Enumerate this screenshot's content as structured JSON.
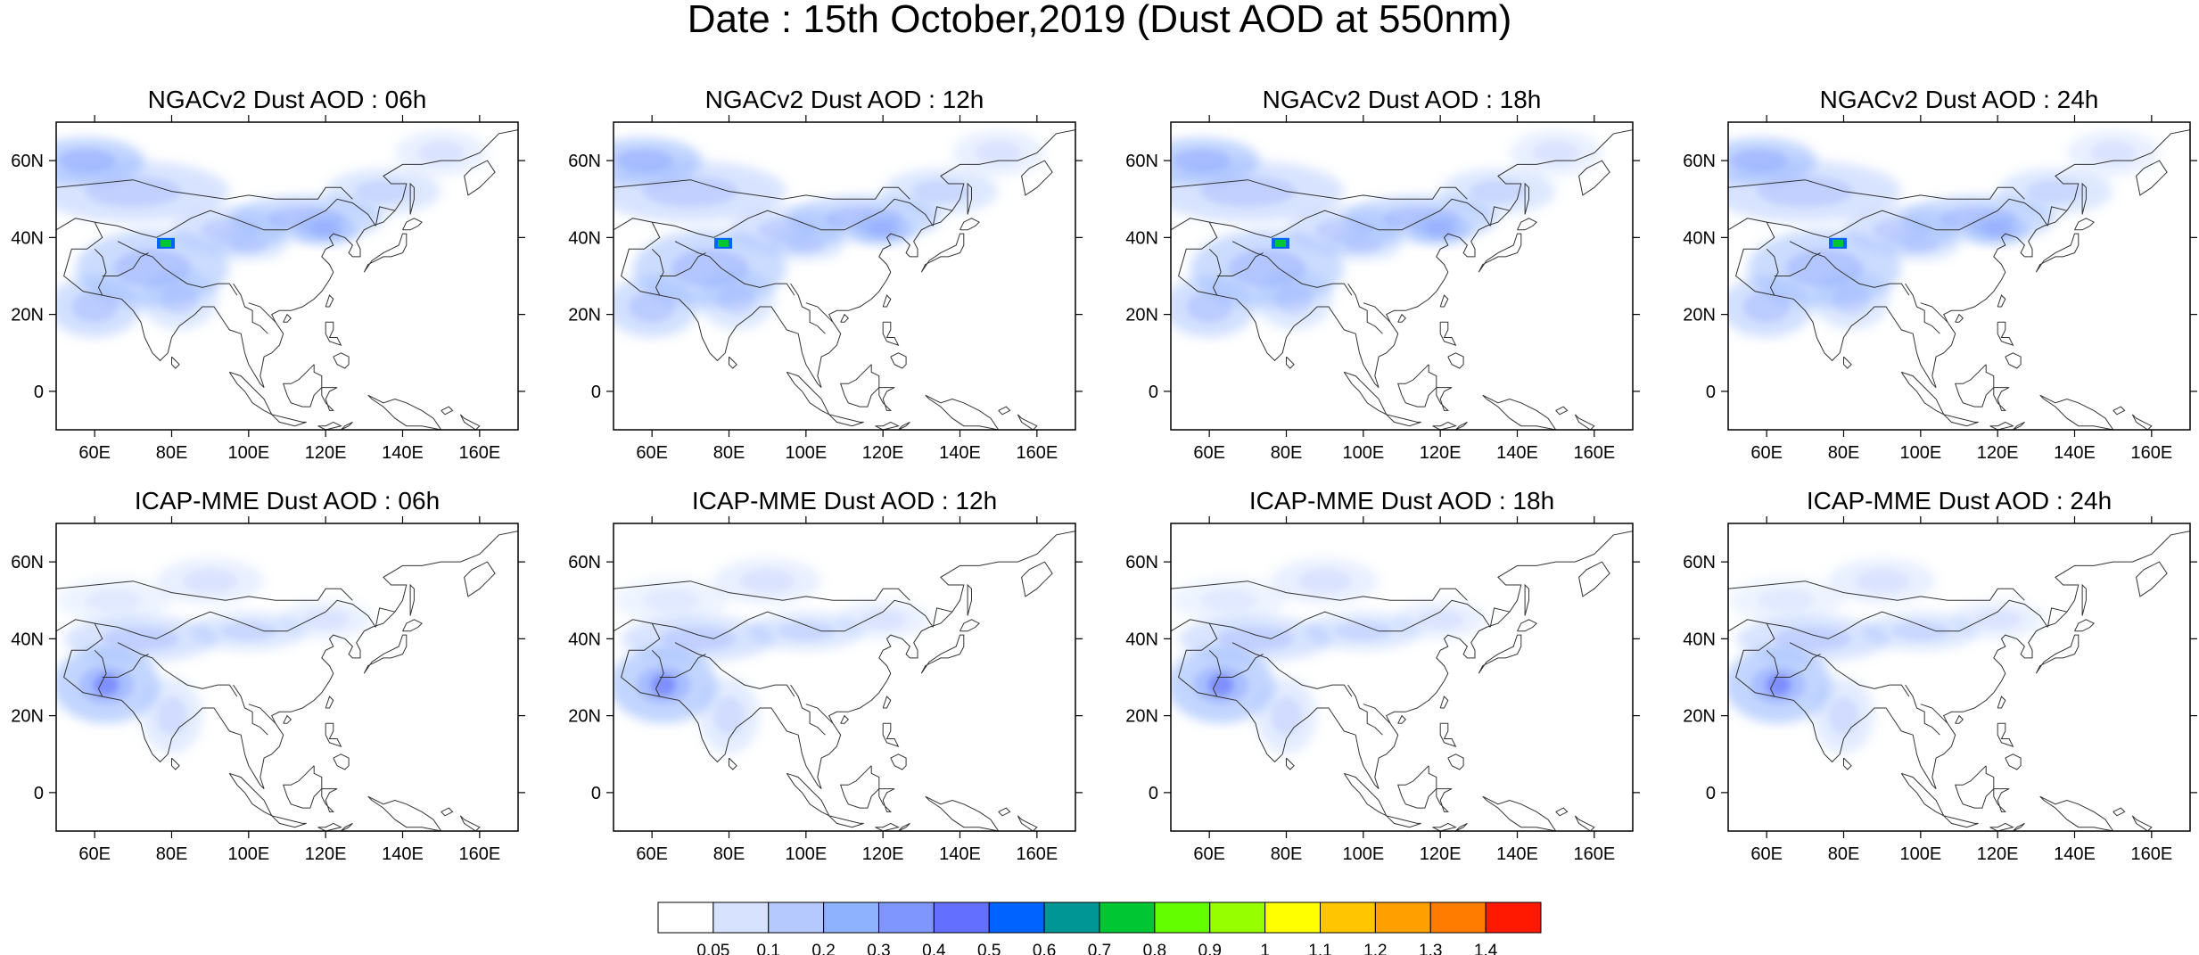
{
  "title": "Date : 15th October,2019 (Dust AOD at 550nm)",
  "map_extent": {
    "lon_min": 50,
    "lon_max": 170,
    "lat_min": -10,
    "lat_max": 70
  },
  "lon_ticks": [
    "60E",
    "80E",
    "100E",
    "120E",
    "140E",
    "160E"
  ],
  "lon_tick_values": [
    60,
    80,
    100,
    120,
    140,
    160
  ],
  "lat_ticks": [
    "60N",
    "40N",
    "20N",
    "0"
  ],
  "lat_tick_values": [
    60,
    40,
    20,
    0
  ],
  "panels": [
    {
      "title": "NGACv2 Dust AOD : 06h",
      "model": "NGACv2",
      "hour": "06h"
    },
    {
      "title": "NGACv2 Dust AOD : 12h",
      "model": "NGACv2",
      "hour": "12h"
    },
    {
      "title": "NGACv2 Dust AOD : 18h",
      "model": "NGACv2",
      "hour": "18h"
    },
    {
      "title": "NGACv2 Dust AOD : 24h",
      "model": "NGACv2",
      "hour": "24h"
    },
    {
      "title": "ICAP-MME Dust AOD : 06h",
      "model": "ICAP-MME",
      "hour": "06h"
    },
    {
      "title": "ICAP-MME Dust AOD : 12h",
      "model": "ICAP-MME",
      "hour": "12h"
    },
    {
      "title": "ICAP-MME Dust AOD : 18h",
      "model": "ICAP-MME",
      "hour": "18h"
    },
    {
      "title": "ICAP-MME Dust AOD : 24h",
      "model": "ICAP-MME",
      "hour": "24h"
    }
  ],
  "colorbar": {
    "labels": [
      "0.05",
      "0.1",
      "0.2",
      "0.3",
      "0.4",
      "0.5",
      "0.6",
      "0.7",
      "0.8",
      "0.9",
      "1",
      "1.1",
      "1.2",
      "1.3",
      "1.4"
    ],
    "colors": [
      "#ffffff",
      "#d6e2ff",
      "#b5c9ff",
      "#8fb2ff",
      "#7f96ff",
      "#6370ff",
      "#0063ff",
      "#009696",
      "#00c633",
      "#63ff00",
      "#96ff00",
      "#ffff00",
      "#ffc600",
      "#ffa000",
      "#ff7c00",
      "#ff1900"
    ]
  }
}
